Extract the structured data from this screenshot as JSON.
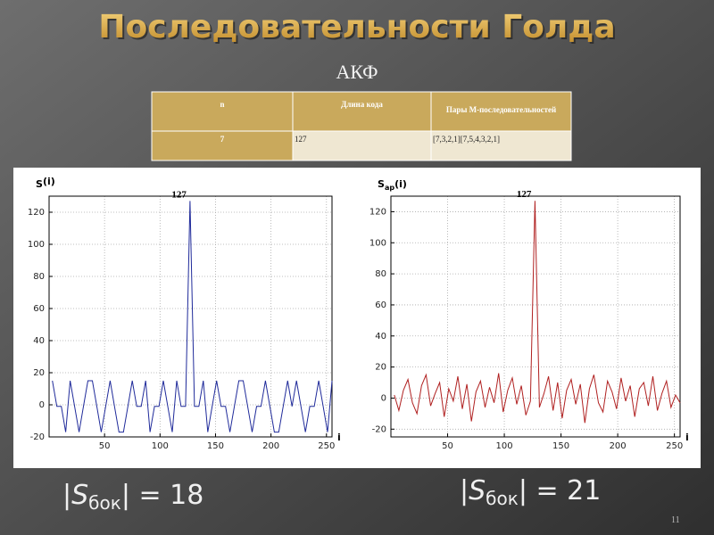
{
  "title": "Последовательности Голда",
  "subtitle": "АКФ",
  "table": {
    "header": [
      "n",
      "Длина кода",
      "Пары М-последовательностей"
    ],
    "rows": [
      [
        "7",
        "127",
        "[7,3,2,1][7,5,4,3,2,1]"
      ]
    ]
  },
  "formula_left": {
    "open": "|",
    "symbol": "S",
    "sub": "бок",
    "rest": "| = 18"
  },
  "formula_right": {
    "open": "|",
    "symbol": "S",
    "sub": "бок",
    "rest": "| = 21"
  },
  "page_number": "11",
  "chart_data": [
    {
      "type": "line",
      "color": "#1f2a9a",
      "grid": true,
      "y_label": {
        "symbol": "S",
        "sub": "",
        "rest": "(i)"
      },
      "x_label": "i",
      "annotation": "127",
      "xlim": [
        0,
        255
      ],
      "ylim": [
        -20,
        130
      ],
      "xticks": [
        50,
        100,
        150,
        200,
        250
      ],
      "yticks": [
        -20,
        0,
        20,
        40,
        60,
        80,
        100,
        120
      ],
      "x": [
        3,
        7,
        11,
        15,
        19,
        23,
        27,
        31,
        35,
        39,
        43,
        47,
        51,
        55,
        59,
        63,
        67,
        71,
        75,
        79,
        83,
        87,
        91,
        95,
        99,
        103,
        107,
        111,
        115,
        119,
        123,
        127,
        131,
        135,
        139,
        143,
        147,
        151,
        155,
        159,
        163,
        167,
        171,
        175,
        179,
        183,
        187,
        191,
        195,
        199,
        203,
        207,
        211,
        215,
        219,
        223,
        227,
        231,
        235,
        239,
        243,
        247,
        251,
        255
      ],
      "values": [
        15,
        -1,
        -1,
        -17,
        15,
        -1,
        -17,
        -1,
        15,
        15,
        -1,
        -17,
        -1,
        15,
        -1,
        -17,
        -17,
        -1,
        15,
        -1,
        -1,
        15,
        -17,
        -1,
        -1,
        15,
        -1,
        -17,
        15,
        -1,
        -1,
        127,
        -1,
        -1,
        15,
        -17,
        -1,
        15,
        -1,
        -1,
        -17,
        -1,
        15,
        15,
        -1,
        -17,
        -1,
        -1,
        15,
        -1,
        -17,
        -17,
        -1,
        15,
        -1,
        15,
        -1,
        -17,
        -1,
        -1,
        15,
        -1,
        -17,
        15
      ]
    },
    {
      "type": "line",
      "color": "#b02020",
      "grid": true,
      "y_label": {
        "symbol": "S",
        "sub": "ap",
        "rest": "(i)"
      },
      "x_label": "i",
      "annotation": "127",
      "xlim": [
        0,
        255
      ],
      "ylim": [
        -25,
        130
      ],
      "xticks": [
        50,
        100,
        150,
        200,
        250
      ],
      "yticks": [
        -20,
        0,
        20,
        40,
        60,
        80,
        100,
        120
      ],
      "x": [
        3,
        7,
        11,
        15,
        19,
        23,
        27,
        31,
        35,
        39,
        43,
        47,
        51,
        55,
        59,
        63,
        67,
        71,
        75,
        79,
        83,
        87,
        91,
        95,
        99,
        103,
        107,
        111,
        115,
        119,
        123,
        127,
        131,
        135,
        139,
        143,
        147,
        151,
        155,
        159,
        163,
        167,
        171,
        175,
        179,
        183,
        187,
        191,
        195,
        199,
        203,
        207,
        211,
        215,
        219,
        223,
        227,
        231,
        235,
        239,
        243,
        247,
        251,
        255
      ],
      "values": [
        2,
        -8,
        5,
        12,
        -3,
        -10,
        8,
        15,
        -5,
        3,
        10,
        -12,
        6,
        -2,
        14,
        -7,
        9,
        -15,
        4,
        11,
        -6,
        7,
        -3,
        16,
        -9,
        5,
        13,
        -4,
        8,
        -11,
        -2,
        127,
        -6,
        3,
        14,
        -8,
        10,
        -13,
        5,
        12,
        -4,
        9,
        -16,
        6,
        15,
        -3,
        -9,
        11,
        4,
        -7,
        13,
        -2,
        8,
        -12,
        6,
        10,
        -5,
        14,
        -8,
        3,
        11,
        -6,
        2,
        -3
      ]
    }
  ]
}
